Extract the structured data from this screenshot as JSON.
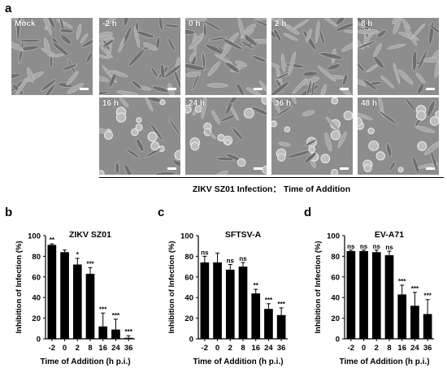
{
  "panel_a": {
    "letter": "a",
    "images": [
      {
        "label": "Mock"
      },
      {
        "label": "-2 h"
      },
      {
        "label": "0 h"
      },
      {
        "label": "2 h"
      },
      {
        "label": "8 h"
      },
      {
        "label": "16 h"
      },
      {
        "label": "24 h"
      },
      {
        "label": "36 h"
      },
      {
        "label": "48 h"
      }
    ],
    "bracket_caption": "ZIKV SZ01 Infection： Time of Addition"
  },
  "chart_data": [
    {
      "letter": "b",
      "type": "bar",
      "title": "ZIKV SZ01",
      "xlabel": "Time of Addition (h p.i.)",
      "ylabel": "Inhibition of Infection (%)",
      "ylim": [
        0,
        100
      ],
      "yticks": [
        "0",
        "20",
        "40",
        "60",
        "80",
        "100"
      ],
      "categories": [
        "-2",
        "0",
        "2",
        "8",
        "16",
        "24",
        "36"
      ],
      "values": [
        91,
        84,
        72,
        63,
        12,
        9,
        1
      ],
      "errors": [
        1,
        2,
        6,
        6,
        13,
        10,
        2
      ],
      "significance": [
        "**",
        "",
        "*",
        "***",
        "***",
        "***",
        "***"
      ]
    },
    {
      "letter": "c",
      "type": "bar",
      "title": "SFTSV-A",
      "xlabel": "Time of Addition (h p.i.)",
      "ylabel": "Inhibition of Infection (%)",
      "ylim": [
        0,
        100
      ],
      "yticks": [
        "0",
        "20",
        "40",
        "60",
        "80",
        "100"
      ],
      "categories": [
        "-2",
        "0",
        "2",
        "8",
        "16",
        "24",
        "36"
      ],
      "values": [
        74,
        74,
        67,
        70,
        44,
        29,
        23
      ],
      "errors": [
        6,
        9,
        5,
        4,
        4,
        5,
        7
      ],
      "significance": [
        "ns",
        "",
        "ns",
        "ns",
        "**",
        "***",
        "***"
      ]
    },
    {
      "letter": "d",
      "type": "bar",
      "title": "EV-A71",
      "xlabel": "Time of Addition (h p.i.)",
      "ylabel": "Inhibition of Infection (%)",
      "ylim": [
        0,
        100
      ],
      "yticks": [
        "0",
        "20",
        "40",
        "60",
        "80",
        "100"
      ],
      "categories": [
        "-2",
        "0",
        "2",
        "8",
        "16",
        "24",
        "36"
      ],
      "values": [
        85,
        85,
        84,
        81,
        43,
        32,
        24
      ],
      "errors": [
        1,
        1,
        2,
        4,
        9,
        13,
        14
      ],
      "significance": [
        "ns",
        "ns",
        "ns",
        "ns",
        "***",
        "***",
        "***"
      ]
    }
  ]
}
